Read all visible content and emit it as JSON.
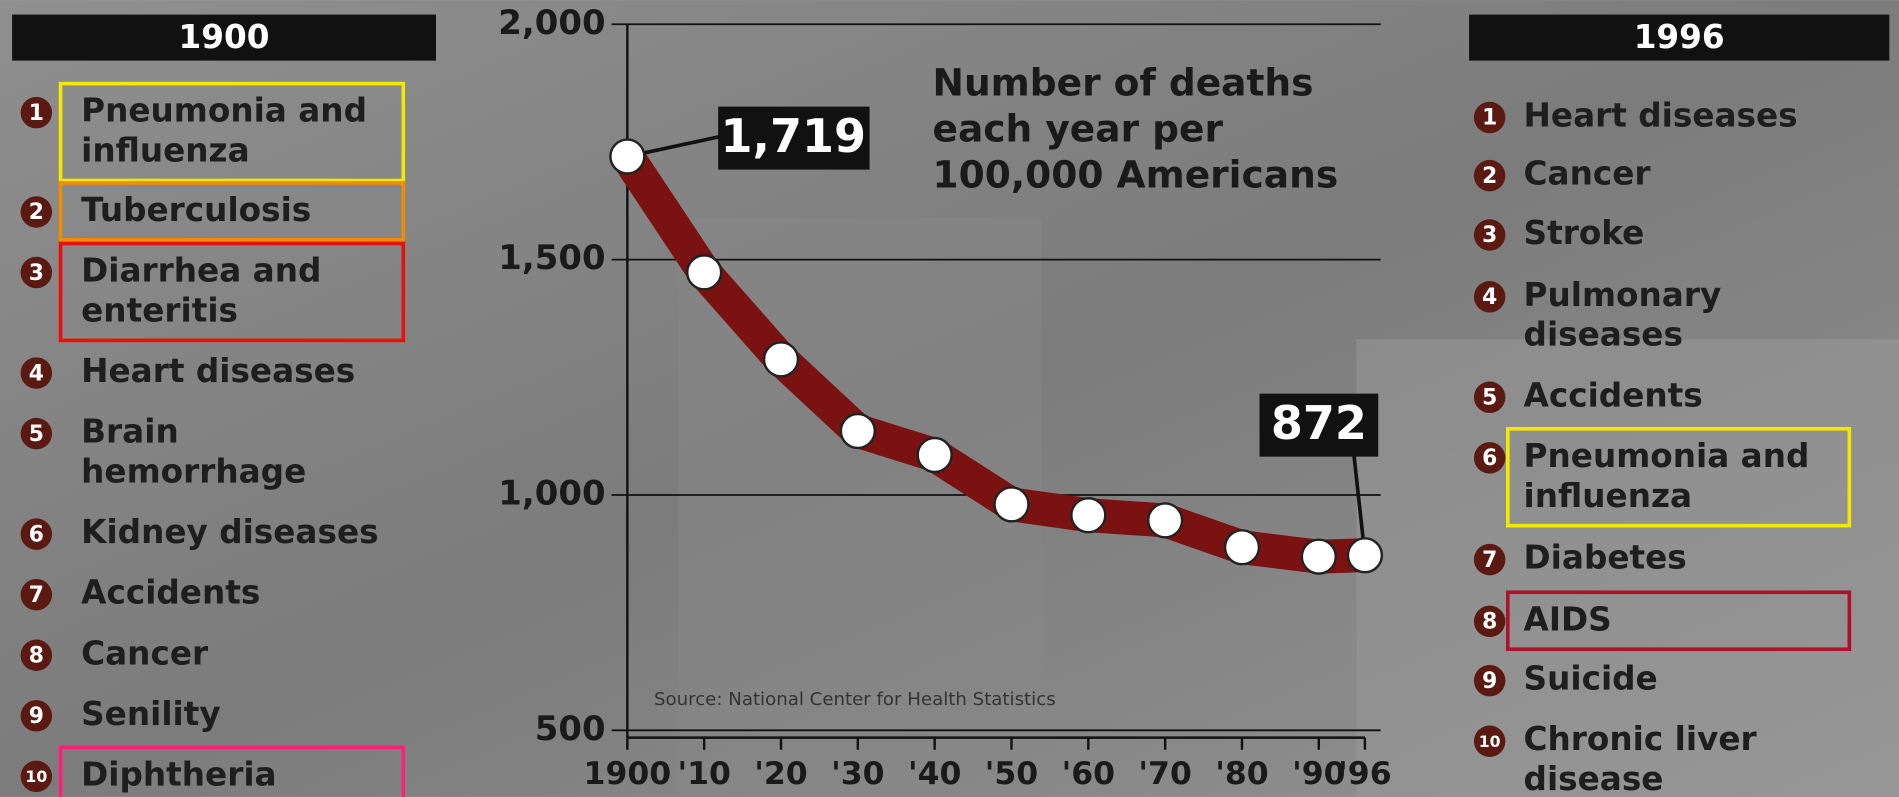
{
  "chart_data": {
    "type": "line",
    "title_lines": [
      "Number of deaths",
      "each year per",
      "100,000 Americans"
    ],
    "source": "Source: National Center for Health Statistics",
    "x": [
      1900,
      1910,
      1920,
      1930,
      1940,
      1950,
      1960,
      1970,
      1980,
      1990,
      1996
    ],
    "values": [
      1719,
      1473,
      1288,
      1136,
      1085,
      980,
      957,
      946,
      889,
      869,
      872
    ],
    "value_labels": [
      "1,719",
      null,
      null,
      null,
      null,
      null,
      null,
      null,
      null,
      null,
      null
    ],
    "color": "#7b1212",
    "marker_color": "#ffffff",
    "xlim": [
      1900,
      1996
    ],
    "xticks": [
      {
        "value": 1900,
        "label": "1900"
      },
      {
        "value": 1910,
        "label": "'10"
      },
      {
        "value": 1920,
        "label": "'20"
      },
      {
        "value": 1930,
        "label": "'30"
      },
      {
        "value": 1940,
        "label": "'40"
      },
      {
        "value": 1950,
        "label": "'50"
      },
      {
        "value": 1960,
        "label": "'60"
      },
      {
        "value": 1970,
        "label": "'70"
      },
      {
        "value": 1980,
        "label": "'80"
      },
      {
        "value": 1990,
        "label": "'90"
      },
      {
        "value": 1996,
        "label": "'96"
      }
    ],
    "ylim": [
      500,
      2000
    ],
    "yticks": [
      500,
      {
        "value": 1000,
        "label": "1,000"
      },
      {
        "value": 1500,
        "label": "1,500"
      },
      {
        "value": 2000,
        "label": "2,000"
      }
    ],
    "grid": true
  },
  "rankings": [
    {
      "header": "1900",
      "items": [
        {
          "rank": 1,
          "lines": [
            "Pneumonia and",
            "influenza"
          ],
          "highlight": "#f5e800"
        },
        {
          "rank": 2,
          "lines": [
            "Tuberculosis"
          ],
          "highlight": "#f08c00"
        },
        {
          "rank": 3,
          "lines": [
            "Diarrhea and",
            "enteritis"
          ],
          "highlight": "#e8100c"
        },
        {
          "rank": 4,
          "lines": [
            "Heart diseases"
          ]
        },
        {
          "rank": 5,
          "lines": [
            "Brain",
            "hemorrhage"
          ]
        },
        {
          "rank": 6,
          "lines": [
            "Kidney diseases"
          ]
        },
        {
          "rank": 7,
          "lines": [
            "Accidents"
          ]
        },
        {
          "rank": 8,
          "lines": [
            "Cancer"
          ]
        },
        {
          "rank": 9,
          "lines": [
            "Senility"
          ]
        },
        {
          "rank": 10,
          "lines": [
            "Diphtheria"
          ],
          "highlight": "#ff1f7a"
        }
      ]
    },
    {
      "header": "1996",
      "items": [
        {
          "rank": 1,
          "lines": [
            "Heart diseases"
          ]
        },
        {
          "rank": 2,
          "lines": [
            "Cancer"
          ]
        },
        {
          "rank": 3,
          "lines": [
            "Stroke"
          ]
        },
        {
          "rank": 4,
          "lines": [
            "Pulmonary",
            "diseases"
          ]
        },
        {
          "rank": 5,
          "lines": [
            "Accidents"
          ]
        },
        {
          "rank": 6,
          "lines": [
            "Pneumonia and",
            "influenza"
          ],
          "highlight": "#f5e800"
        },
        {
          "rank": 7,
          "lines": [
            "Diabetes"
          ]
        },
        {
          "rank": 8,
          "lines": [
            "AIDS"
          ],
          "highlight": "#b0102a"
        },
        {
          "rank": 9,
          "lines": [
            "Suicide"
          ]
        },
        {
          "rank": 10,
          "lines": [
            "Chronic liver",
            "disease"
          ]
        }
      ]
    }
  ]
}
